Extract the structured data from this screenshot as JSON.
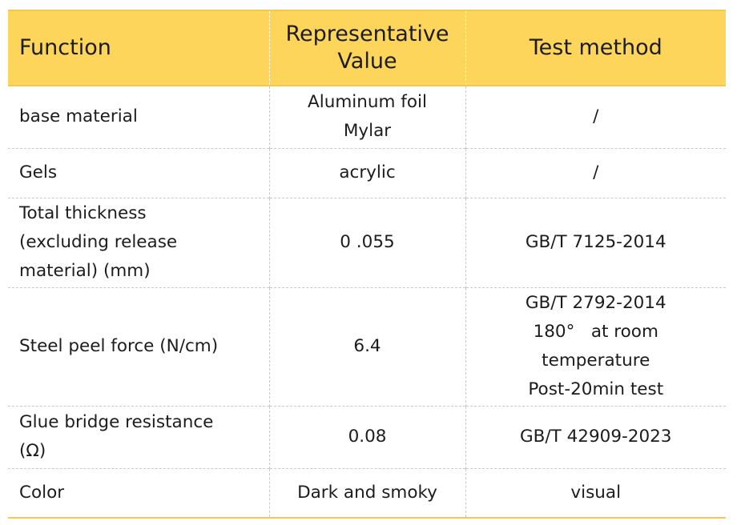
{
  "header": {
    "function": "Function",
    "value_line1": "Representative",
    "value_line2": "Value",
    "method": "Test method"
  },
  "rows": [
    {
      "function": [
        "base material"
      ],
      "value": [
        "Aluminum foil",
        "Mylar"
      ],
      "method": [
        "/"
      ]
    },
    {
      "function": [
        "Gels"
      ],
      "value": [
        "acrylic"
      ],
      "method": [
        "/"
      ]
    },
    {
      "function": [
        "Total thickness",
        "(excluding release",
        "material) (mm)"
      ],
      "value": [
        "0 .055"
      ],
      "method": [
        "GB/T 7125-2014"
      ]
    },
    {
      "function": [
        "Steel peel force (N/cm)"
      ],
      "value": [
        "6.4"
      ],
      "method": [
        "GB/T 2792-2014",
        "180°   at room",
        "temperature",
        "Post-20min test"
      ]
    },
    {
      "function": [
        "Glue bridge resistance",
        "(Ω)"
      ],
      "value": [
        "0.08"
      ],
      "method": [
        "GB/T 42909-2023"
      ]
    },
    {
      "function": [
        "Color"
      ],
      "value": [
        "Dark and smoky"
      ],
      "method": [
        "visual"
      ]
    }
  ]
}
